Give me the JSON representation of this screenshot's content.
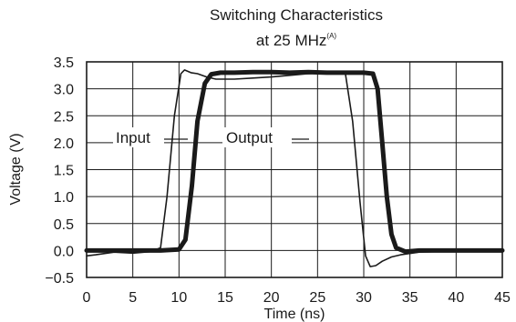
{
  "chart_data": {
    "type": "line",
    "title": "Switching Characteristics",
    "subtitle": "at 25 MHz",
    "subtitle_note": "(A)",
    "xlabel": "Time (ns)",
    "ylabel": "Voltage (V)",
    "xlim": [
      0,
      45
    ],
    "ylim": [
      -0.5,
      3.5
    ],
    "x_ticks": [
      0,
      5,
      10,
      15,
      20,
      25,
      30,
      35,
      40,
      45
    ],
    "y_ticks": [
      -0.5,
      0.0,
      0.5,
      1.0,
      1.5,
      2.0,
      2.5,
      3.0,
      3.5
    ],
    "x_tick_labels": [
      "0",
      "5",
      "10",
      "15",
      "20",
      "25",
      "30",
      "35",
      "40",
      "45"
    ],
    "y_tick_labels": [
      "−0.5",
      "0.0",
      "0.5",
      "1.0",
      "1.5",
      "2.0",
      "2.5",
      "3.0",
      "3.5"
    ],
    "grid": true,
    "series": [
      {
        "name": "Input",
        "stroke": "thin",
        "x": [
          0,
          1,
          3,
          5,
          7,
          8,
          8.7,
          9.5,
          10.2,
          10.6,
          11.3,
          12,
          13,
          14,
          16,
          18,
          20,
          22,
          24,
          26,
          27,
          28,
          28.8,
          29.6,
          30.2,
          30.7,
          31.3,
          32,
          33,
          34,
          36,
          38,
          40,
          42,
          45
        ],
        "y": [
          -0.1,
          -0.08,
          -0.03,
          -0.05,
          -0.02,
          0.05,
          1.0,
          2.5,
          3.28,
          3.35,
          3.3,
          3.28,
          3.22,
          3.18,
          3.18,
          3.2,
          3.22,
          3.25,
          3.28,
          3.3,
          3.32,
          3.3,
          2.4,
          0.9,
          -0.1,
          -0.3,
          -0.28,
          -0.2,
          -0.12,
          -0.08,
          -0.03,
          -0.02,
          0.0,
          0.0,
          0.0
        ]
      },
      {
        "name": "Output",
        "stroke": "thick",
        "x": [
          0,
          2,
          4,
          6,
          8,
          10,
          10.7,
          11.4,
          12,
          12.8,
          13.5,
          14.5,
          16,
          18,
          20,
          22,
          24,
          26,
          28,
          30,
          31,
          31.5,
          32,
          32.5,
          33,
          33.5,
          34.5,
          36,
          38,
          40,
          42,
          45
        ],
        "y": [
          0.0,
          0.0,
          0.0,
          0.0,
          0.0,
          0.02,
          0.2,
          1.2,
          2.4,
          3.1,
          3.27,
          3.3,
          3.3,
          3.31,
          3.31,
          3.3,
          3.31,
          3.3,
          3.3,
          3.3,
          3.28,
          3.0,
          2.0,
          1.0,
          0.3,
          0.05,
          -0.02,
          0.0,
          0.0,
          0.0,
          0.0,
          0.0
        ]
      }
    ],
    "annotations": [
      "Input",
      "Output"
    ]
  }
}
